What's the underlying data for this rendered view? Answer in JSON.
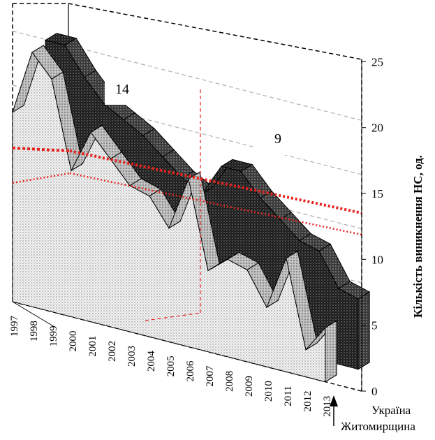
{
  "chart_data": {
    "type": "area",
    "projection": "3d",
    "categories": [
      "1997",
      "1998",
      "1999",
      "2000",
      "2001",
      "2002",
      "2003",
      "2004",
      "2005",
      "2006",
      "2007",
      "2008",
      "2009",
      "2010",
      "2011",
      "2012",
      "2013"
    ],
    "series": [
      {
        "name": "Житомирщина",
        "values": [
          17.5,
          23.5,
          21.5,
          13.5,
          17.5,
          15.5,
          13.5,
          13.0,
          10.5,
          15.5,
          7.5,
          9.0,
          8.5,
          5.5,
          10.5,
          2.5,
          5.0
        ]
      },
      {
        "name": "Україна",
        "values": [
          23.0,
          23.0,
          20.5,
          18.5,
          17.5,
          16.5,
          15.0,
          13.5,
          12.5,
          15.5,
          15.5,
          13.5,
          12.0,
          10.5,
          10.0,
          7.0,
          6.5
        ]
      }
    ],
    "trend_lines": "dotted red linear trends for both series",
    "annotations": [
      "14",
      "9"
    ],
    "y_axis": {
      "label": "Кількість виникнення НС, од.",
      "ticks": [
        "0",
        "5",
        "10",
        "15",
        "20",
        "25"
      ],
      "range": [
        0,
        25
      ]
    },
    "legend": [
      "Україна",
      "Житомирщина"
    ],
    "grid": true
  },
  "colors": {
    "trend": "#e8221d",
    "front_series": "#cfcfcf",
    "back_series": "#1a1a1a",
    "grid": "#b0b0b0"
  }
}
